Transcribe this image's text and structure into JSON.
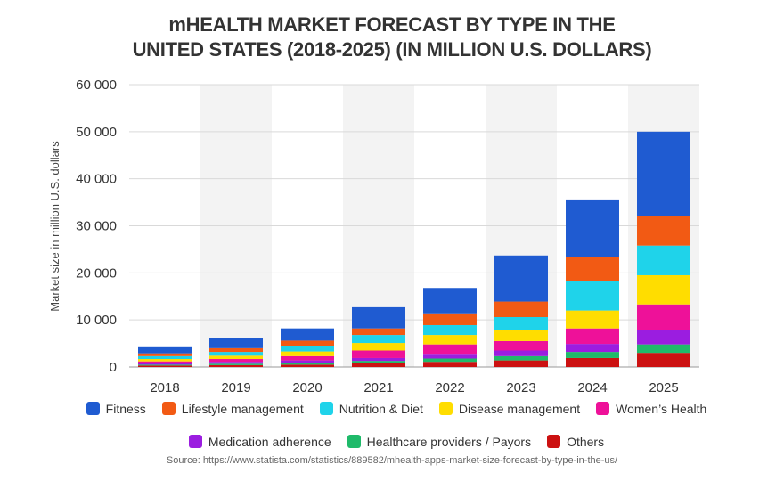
{
  "title_lines": [
    "mHEALTH MARKET FORECAST BY TYPE IN THE",
    "UNITED STATES (2018-2025) (IN MILLION U.S. DOLLARS)"
  ],
  "source": "Source: https://www.statista.com/statistics/889582/mhealth-apps-market-size-forecast-by-type-in-the-us/",
  "chart_data": {
    "type": "bar",
    "stacked": true,
    "title": "mHEALTH MARKET FORECAST BY TYPE IN THE UNITED STATES (2018-2025) (IN MILLION U.S. DOLLARS)",
    "xlabel": "",
    "ylabel": "Market size in million U.S. dollars",
    "ylim": [
      0,
      60000
    ],
    "yticks": [
      0,
      10000,
      20000,
      30000,
      40000,
      50000,
      60000
    ],
    "ytick_labels": [
      "0",
      "10 000",
      "20 000",
      "30 000",
      "40 000",
      "50 000",
      "60 000"
    ],
    "grid": true,
    "legend_position": "bottom",
    "categories": [
      "2018",
      "2019",
      "2020",
      "2021",
      "2022",
      "2023",
      "2024",
      "2025"
    ],
    "series": [
      {
        "name": "Others",
        "color": "#cc1111",
        "values": [
          300,
          400,
          500,
          800,
          1100,
          1400,
          1900,
          3000
        ]
      },
      {
        "name": "Healthcare providers / Payors",
        "color": "#1fba6a",
        "values": [
          200,
          300,
          400,
          500,
          700,
          900,
          1300,
          1800
        ]
      },
      {
        "name": "Medication adherence",
        "color": "#9b1de0",
        "values": [
          300,
          400,
          500,
          600,
          1000,
          1200,
          1700,
          3000
        ]
      },
      {
        "name": "Women's Health",
        "color": "#ee1199",
        "values": [
          400,
          600,
          900,
          1600,
          2000,
          2000,
          3300,
          5500
        ]
      },
      {
        "name": "Disease management",
        "color": "#ffdd00",
        "values": [
          500,
          700,
          1000,
          1600,
          2000,
          2400,
          3800,
          6200
        ]
      },
      {
        "name": "Nutrition & Diet",
        "color": "#1fd3ea",
        "values": [
          600,
          800,
          1200,
          1700,
          2100,
          2700,
          6200,
          6300
        ]
      },
      {
        "name": "Lifestyle management",
        "color": "#f25a14",
        "values": [
          600,
          800,
          1100,
          1400,
          2500,
          3300,
          5200,
          6200
        ]
      },
      {
        "name": "Fitness",
        "color": "#1f5bd1",
        "values": [
          1300,
          2100,
          2600,
          4500,
          5400,
          9800,
          12200,
          18000
        ]
      }
    ]
  }
}
